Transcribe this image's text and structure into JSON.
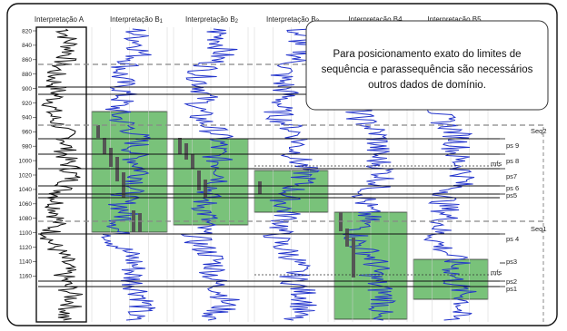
{
  "headers": {
    "a": "Interpretação A",
    "b1": "Interpretação B",
    "b1_sub": "1",
    "b2": "Interpretação B",
    "b2_sub": "2",
    "b3": "Interpretação B",
    "b3_sub": "3",
    "b4": "Interpretação B4",
    "b5": "Interpretação B5"
  },
  "depth_ticks": [
    "820",
    "840",
    "860",
    "880",
    "900",
    "920",
    "940",
    "960",
    "980",
    "1000",
    "1020",
    "1040",
    "1060",
    "1080",
    "1100",
    "1120",
    "1140",
    "1160"
  ],
  "note": {
    "line1": "Para posicionamento exato do limites de",
    "line2": "sequência e parassequência são necessários",
    "line3": "outros dados de domínio."
  },
  "labels": {
    "seq2": "Seq2",
    "seq1": "Seq1",
    "mfs_upper": "mfs",
    "mfs_lower": "mfs",
    "ps9": "ps 9",
    "ps8": "ps 8",
    "ps7": "ps7",
    "ps6": "ps 6",
    "ps5": "ps5",
    "ps4": "ps 4",
    "ps3": "ps3",
    "ps2": "ps2",
    "ps1": "ps1"
  },
  "colors": {
    "green": "#79c27a",
    "log_blue": "#2233cc",
    "log_black": "#111111",
    "bar": "#555555",
    "dash": "#888888"
  }
}
